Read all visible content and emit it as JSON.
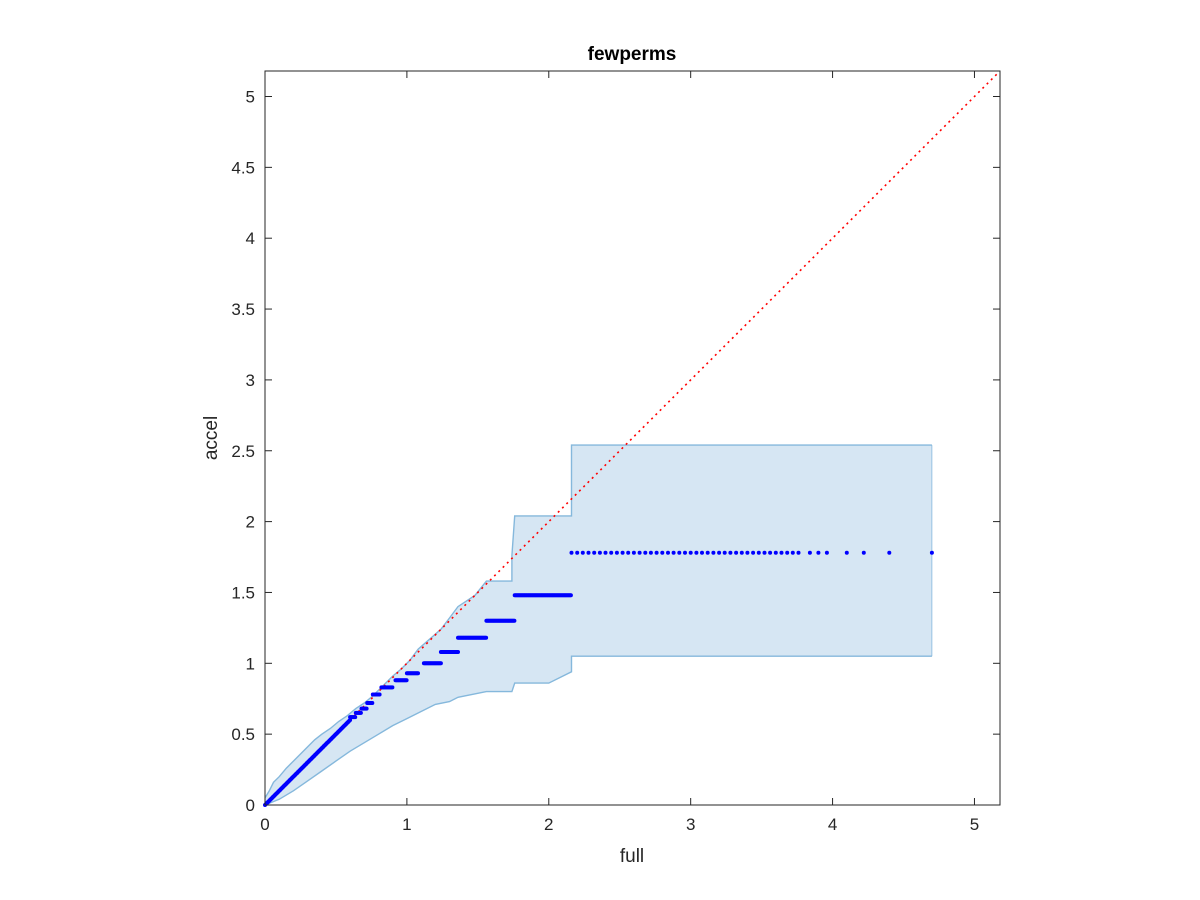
{
  "chart_data": {
    "type": "scatter",
    "title": "fewperms",
    "xlabel": "full",
    "ylabel": "accel",
    "xlim": [
      0,
      5.18
    ],
    "ylim": [
      0,
      5.18
    ],
    "xticks": [
      0,
      1,
      2,
      3,
      4,
      5
    ],
    "yticks": [
      0,
      0.5,
      1,
      1.5,
      2,
      2.5,
      3,
      3.5,
      4,
      4.5,
      5
    ],
    "xtick_labels": [
      "0",
      "1",
      "2",
      "3",
      "4",
      "5"
    ],
    "ytick_labels": [
      "0",
      "0.5",
      "1",
      "1.5",
      "2",
      "2.5",
      "3",
      "3.5",
      "4",
      "4.5",
      "5"
    ],
    "grid": false,
    "box": true,
    "reference_line": {
      "style": "dotted",
      "color": "#ff0000",
      "from": [
        0,
        0
      ],
      "to": [
        5.18,
        5.18
      ]
    },
    "band": {
      "color": "#d6e6f3",
      "edge_color": "#85b8dc",
      "upper": [
        [
          0,
          0.05
        ],
        [
          0.03,
          0.1
        ],
        [
          0.06,
          0.16
        ],
        [
          0.1,
          0.2
        ],
        [
          0.15,
          0.26
        ],
        [
          0.2,
          0.31
        ],
        [
          0.25,
          0.36
        ],
        [
          0.3,
          0.41
        ],
        [
          0.35,
          0.46
        ],
        [
          0.4,
          0.5
        ],
        [
          0.46,
          0.54
        ],
        [
          0.52,
          0.59
        ],
        [
          0.58,
          0.63
        ],
        [
          0.64,
          0.68
        ],
        [
          0.7,
          0.72
        ],
        [
          0.76,
          0.77
        ],
        [
          0.82,
          0.83
        ],
        [
          0.9,
          0.91
        ],
        [
          0.96,
          0.96
        ],
        [
          1.02,
          1.02
        ],
        [
          1.08,
          1.1
        ],
        [
          1.16,
          1.17
        ],
        [
          1.24,
          1.24
        ],
        [
          1.3,
          1.32
        ],
        [
          1.36,
          1.4
        ],
        [
          1.48,
          1.48
        ],
        [
          1.56,
          1.58
        ],
        [
          1.74,
          1.58
        ],
        [
          1.74,
          1.76
        ],
        [
          1.76,
          2.04
        ],
        [
          2.16,
          2.04
        ],
        [
          2.16,
          2.54
        ],
        [
          4.7,
          2.54
        ]
      ],
      "lower": [
        [
          0,
          0
        ],
        [
          0.1,
          0.04
        ],
        [
          0.2,
          0.1
        ],
        [
          0.3,
          0.17
        ],
        [
          0.4,
          0.24
        ],
        [
          0.5,
          0.31
        ],
        [
          0.6,
          0.38
        ],
        [
          0.7,
          0.44
        ],
        [
          0.8,
          0.5
        ],
        [
          0.9,
          0.56
        ],
        [
          1.0,
          0.61
        ],
        [
          1.1,
          0.66
        ],
        [
          1.2,
          0.71
        ],
        [
          1.3,
          0.73
        ],
        [
          1.36,
          0.76
        ],
        [
          1.56,
          0.8
        ],
        [
          1.74,
          0.8
        ],
        [
          1.76,
          0.86
        ],
        [
          2.0,
          0.86
        ],
        [
          2.16,
          0.94
        ],
        [
          2.16,
          1.05
        ],
        [
          4.7,
          1.05
        ]
      ]
    },
    "series": [
      {
        "marker_color": "#0000ff",
        "segments": [
          {
            "x_start": 0.0,
            "x_end": 0.6,
            "slope": 1.0,
            "y": null
          },
          {
            "x_start": 0.6,
            "x_end": 0.64,
            "y": 0.62
          },
          {
            "x_start": 0.64,
            "x_end": 0.68,
            "y": 0.65
          },
          {
            "x_start": 0.68,
            "x_end": 0.72,
            "y": 0.68
          },
          {
            "x_start": 0.72,
            "x_end": 0.76,
            "y": 0.72
          },
          {
            "x_start": 0.76,
            "x_end": 0.81,
            "y": 0.78
          },
          {
            "x_start": 0.82,
            "x_end": 0.9,
            "y": 0.83
          },
          {
            "x_start": 0.92,
            "x_end": 1.0,
            "y": 0.88
          },
          {
            "x_start": 1.0,
            "x_end": 1.08,
            "y": 0.93
          },
          {
            "x_start": 1.12,
            "x_end": 1.24,
            "y": 1.0
          },
          {
            "x_start": 1.24,
            "x_end": 1.36,
            "y": 1.08
          },
          {
            "x_start": 1.36,
            "x_end": 1.56,
            "y": 1.18
          },
          {
            "x_start": 1.56,
            "x_end": 1.76,
            "y": 1.3
          },
          {
            "x_start": 1.76,
            "x_end": 2.16,
            "y": 1.48
          }
        ],
        "tail_points": [
          [
            2.16,
            1.78
          ],
          [
            2.2,
            1.78
          ],
          [
            2.24,
            1.78
          ],
          [
            2.28,
            1.78
          ],
          [
            2.32,
            1.78
          ],
          [
            2.36,
            1.78
          ],
          [
            2.4,
            1.78
          ],
          [
            2.44,
            1.78
          ],
          [
            2.48,
            1.78
          ],
          [
            2.52,
            1.78
          ],
          [
            2.56,
            1.78
          ],
          [
            2.6,
            1.78
          ],
          [
            2.64,
            1.78
          ],
          [
            2.68,
            1.78
          ],
          [
            2.72,
            1.78
          ],
          [
            2.76,
            1.78
          ],
          [
            2.8,
            1.78
          ],
          [
            2.84,
            1.78
          ],
          [
            2.88,
            1.78
          ],
          [
            2.92,
            1.78
          ],
          [
            2.96,
            1.78
          ],
          [
            3.0,
            1.78
          ],
          [
            3.04,
            1.78
          ],
          [
            3.08,
            1.78
          ],
          [
            3.12,
            1.78
          ],
          [
            3.16,
            1.78
          ],
          [
            3.2,
            1.78
          ],
          [
            3.24,
            1.78
          ],
          [
            3.28,
            1.78
          ],
          [
            3.32,
            1.78
          ],
          [
            3.36,
            1.78
          ],
          [
            3.4,
            1.78
          ],
          [
            3.44,
            1.78
          ],
          [
            3.48,
            1.78
          ],
          [
            3.52,
            1.78
          ],
          [
            3.56,
            1.78
          ],
          [
            3.6,
            1.78
          ],
          [
            3.64,
            1.78
          ],
          [
            3.68,
            1.78
          ],
          [
            3.72,
            1.78
          ],
          [
            3.76,
            1.78
          ],
          [
            3.84,
            1.78
          ],
          [
            3.9,
            1.78
          ],
          [
            3.96,
            1.78
          ],
          [
            4.1,
            1.78
          ],
          [
            4.22,
            1.78
          ],
          [
            4.4,
            1.78
          ],
          [
            4.7,
            1.78
          ]
        ]
      }
    ]
  }
}
